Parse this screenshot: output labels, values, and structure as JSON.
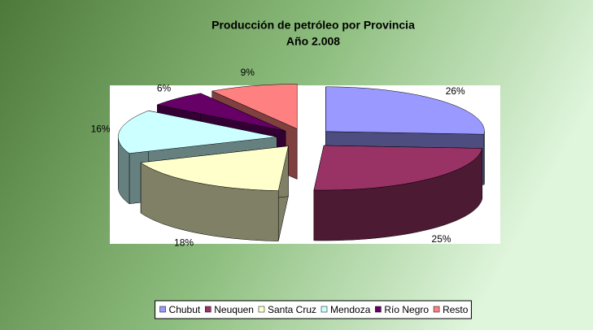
{
  "chart_data": {
    "type": "pie3d",
    "title": "Producción de petróleo por Provincia",
    "subtitle": "Año 2.008",
    "categories": [
      "Chubut",
      "Neuquen",
      "Santa Cruz",
      "Mendoza",
      "Río Negro",
      "Resto"
    ],
    "values": [
      26,
      25,
      18,
      16,
      6,
      9
    ],
    "value_labels": [
      "26%",
      "25%",
      "18%",
      "16%",
      "6%",
      "9%"
    ],
    "colors": [
      "#9999ff",
      "#993366",
      "#ffffcc",
      "#ccffff",
      "#660066",
      "#ff8080"
    ],
    "legend": "bottom"
  }
}
